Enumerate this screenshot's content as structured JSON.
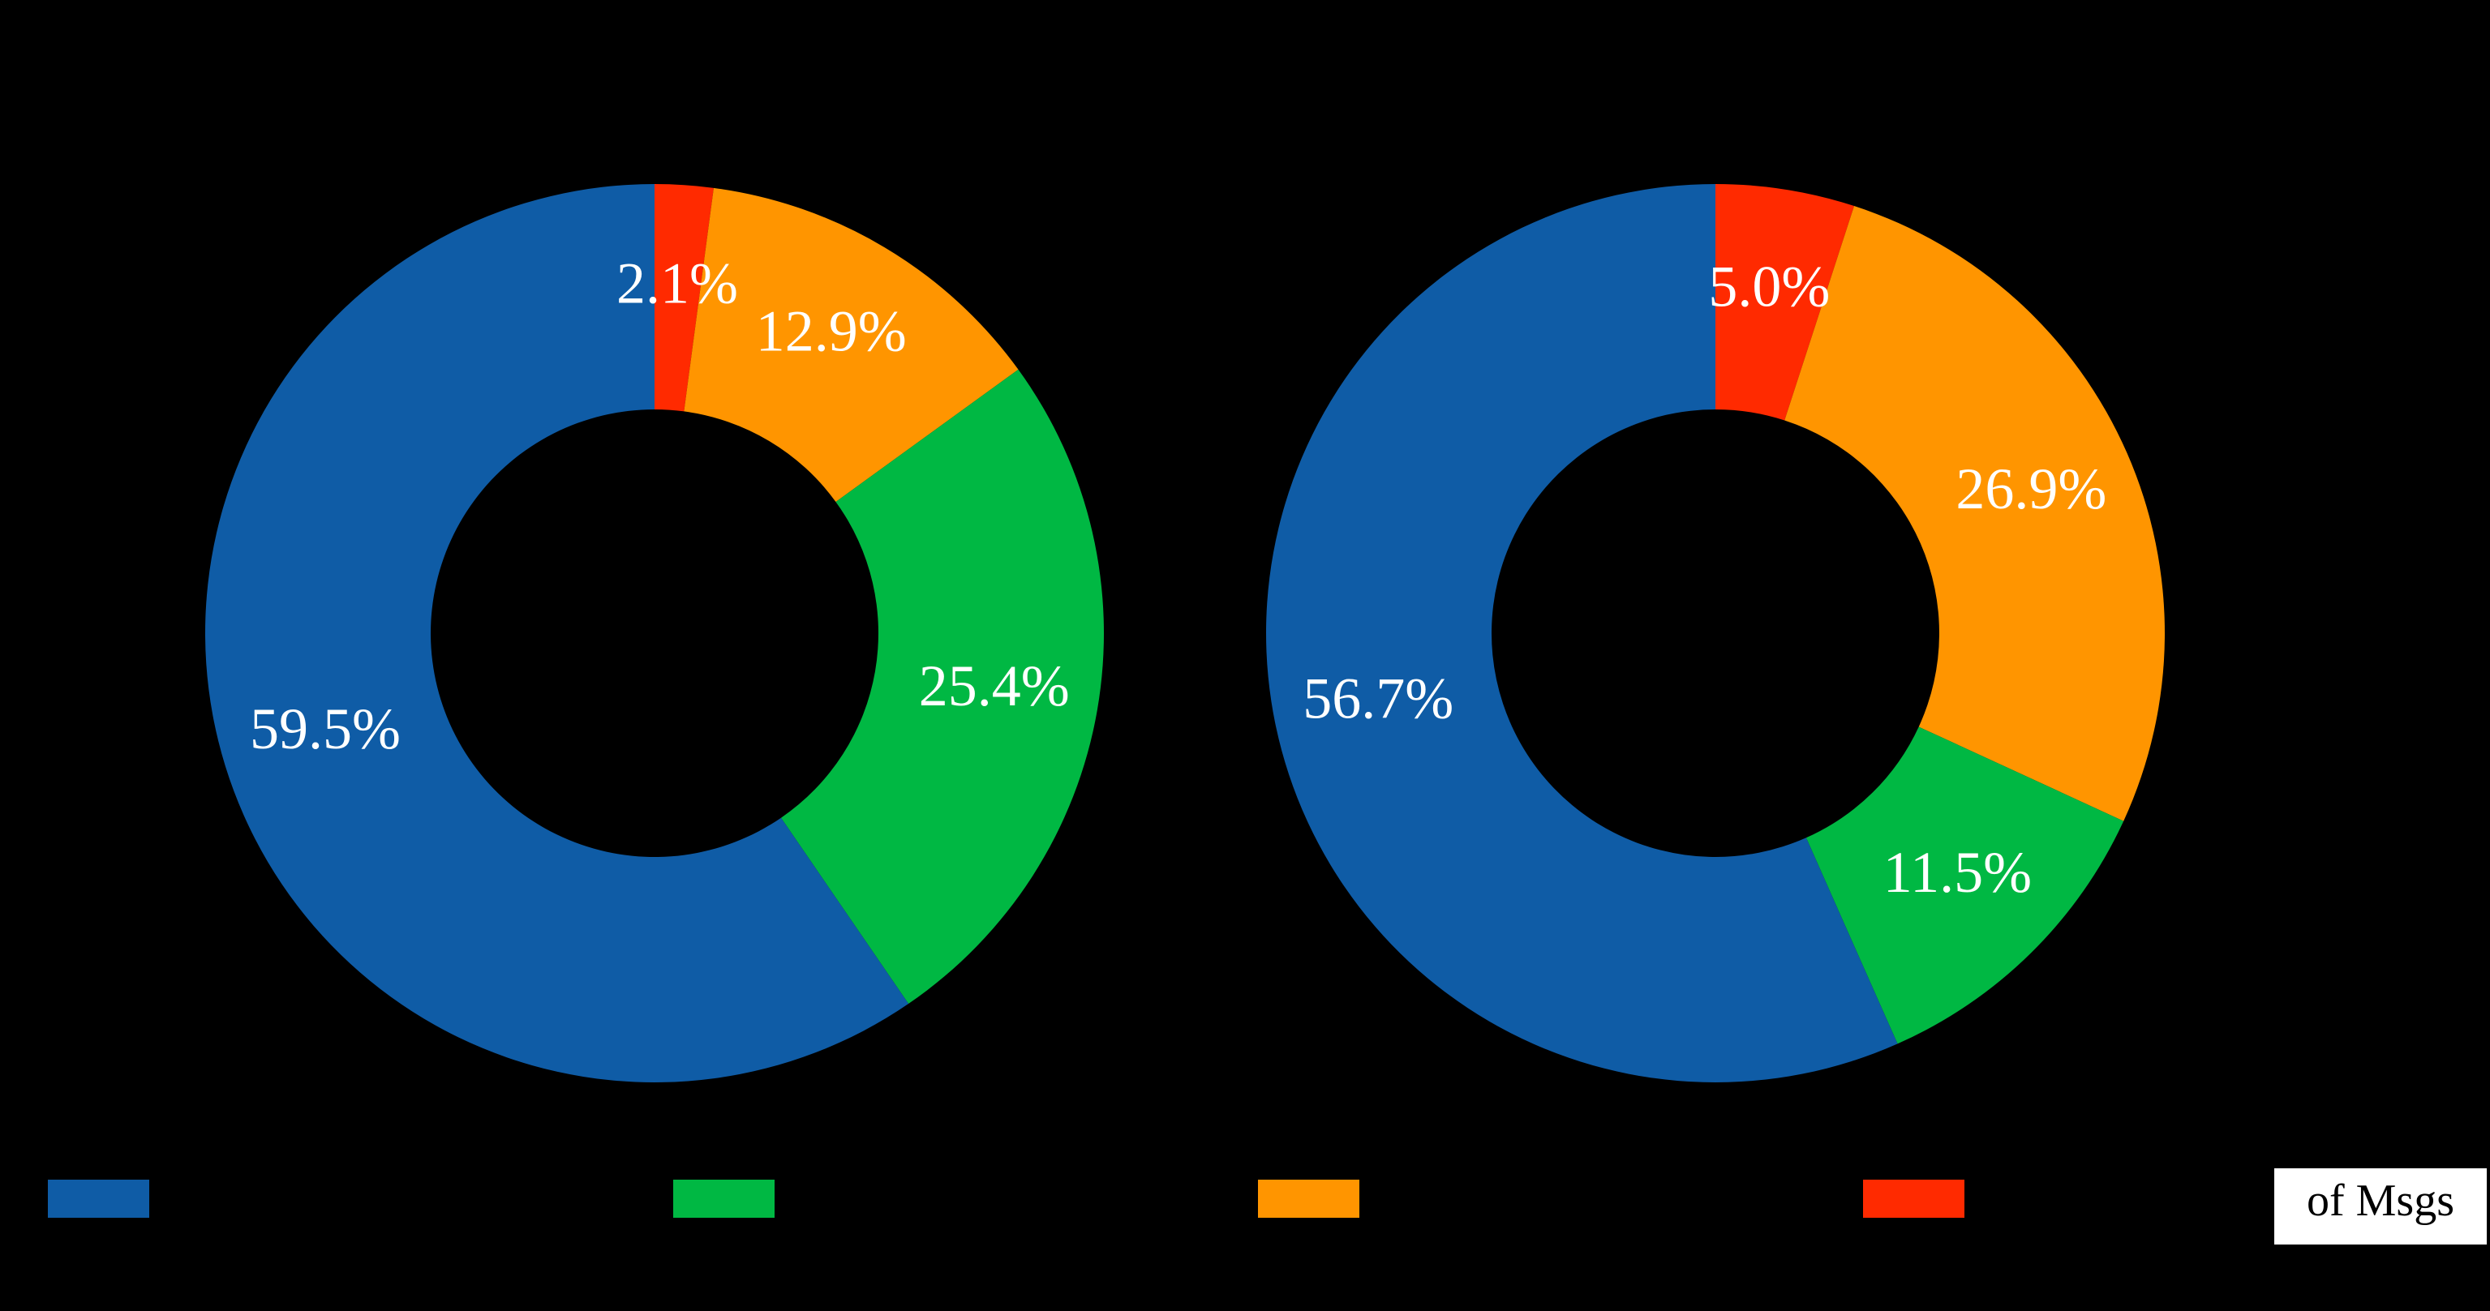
{
  "chart_data": [
    {
      "type": "pie",
      "donut": true,
      "values": [
        2.1,
        12.9,
        25.4,
        59.5
      ],
      "value_labels": [
        "2.1%",
        "12.9%",
        "25.4%",
        "59.5%"
      ],
      "colors": [
        "#ff2a00",
        "#ff9500",
        "#00b843",
        "#0f5ca6"
      ]
    },
    {
      "type": "pie",
      "donut": true,
      "values": [
        5.0,
        26.9,
        11.5,
        56.7
      ],
      "value_labels": [
        "5.0%",
        "26.9%",
        "11.5%",
        "56.7%"
      ],
      "colors": [
        "#ff2a00",
        "#ff9500",
        "#00b843",
        "#0f5ca6"
      ]
    }
  ],
  "legend": {
    "title": "of Msgs",
    "colors": [
      "#0f5ca6",
      "#00b843",
      "#ff9500",
      "#ff2a00"
    ]
  }
}
